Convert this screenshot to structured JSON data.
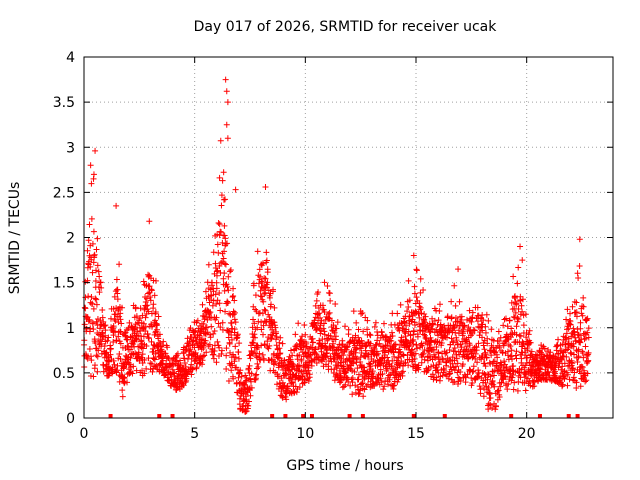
{
  "chart_data": {
    "type": "scatter",
    "title": "Day 017 of 2026, SRMTID for receiver ucak",
    "xlabel": "GPS time / hours",
    "ylabel": "SRMTID / TECUs",
    "xlim": [
      0,
      23.9
    ],
    "ylim": [
      0,
      4
    ],
    "grid": true,
    "marker": "+",
    "x_ticks": [
      0,
      5,
      10,
      15,
      20
    ],
    "x_tick_labels": [
      "0",
      "5",
      "10",
      "15",
      "20"
    ],
    "y_ticks": [
      0,
      0.5,
      1,
      1.5,
      2,
      2.5,
      3,
      3.5,
      4
    ],
    "y_tick_labels": [
      "0",
      "0.5",
      "1",
      "1.5",
      "2",
      "2.5",
      "3",
      "3.5",
      "4"
    ],
    "series": [
      {
        "name": "SRMTID",
        "color": "#ff0000",
        "envelope_hours": [
          0,
          0.2,
          0.4,
          0.6,
          0.8,
          1.0,
          1.2,
          1.5,
          1.8,
          2.0,
          2.3,
          2.6,
          2.9,
          3.2,
          3.5,
          3.8,
          4.1,
          4.4,
          4.7,
          5.0,
          5.3,
          5.6,
          5.9,
          6.2,
          6.5,
          6.8,
          7.1,
          7.4,
          7.7,
          8.0,
          8.3,
          8.6,
          8.9,
          9.2,
          9.5,
          9.8,
          10.1,
          10.4,
          10.7,
          11.0,
          11.3,
          11.6,
          11.9,
          12.2,
          12.5,
          12.8,
          13.1,
          13.4,
          13.7,
          14.0,
          14.3,
          14.6,
          14.9,
          15.2,
          15.5,
          15.8,
          16.1,
          16.4,
          16.7,
          17.0,
          17.3,
          17.6,
          17.9,
          18.2,
          18.5,
          18.8,
          19.1,
          19.4,
          19.7,
          20.0,
          20.3,
          20.6,
          20.9,
          21.2,
          21.5,
          21.8,
          22.1,
          22.4,
          22.8
        ],
        "envelope_low": [
          0.5,
          0.5,
          0.4,
          0.35,
          0.4,
          0.4,
          0.45,
          0.3,
          0.2,
          0.4,
          0.5,
          0.45,
          0.45,
          0.5,
          0.45,
          0.35,
          0.3,
          0.3,
          0.4,
          0.5,
          0.55,
          0.7,
          0.6,
          0.5,
          0.4,
          0.3,
          0.05,
          0.05,
          0.3,
          0.6,
          0.5,
          0.4,
          0.2,
          0.2,
          0.2,
          0.3,
          0.3,
          0.6,
          0.6,
          0.5,
          0.4,
          0.3,
          0.3,
          0.2,
          0.2,
          0.3,
          0.3,
          0.3,
          0.3,
          0.3,
          0.4,
          0.5,
          0.5,
          0.5,
          0.5,
          0.4,
          0.4,
          0.4,
          0.3,
          0.3,
          0.3,
          0.3,
          0.2,
          0.1,
          0.05,
          0.2,
          0.3,
          0.3,
          0.3,
          0.3,
          0.3,
          0.4,
          0.4,
          0.4,
          0.35,
          0.3,
          0.3,
          0.3,
          0.4
        ],
        "envelope_high": [
          1.3,
          2.2,
          2.8,
          2.3,
          1.6,
          1.1,
          1.2,
          1.9,
          1.2,
          1.2,
          1.3,
          1.3,
          2.1,
          1.4,
          0.9,
          0.8,
          0.8,
          0.7,
          1.0,
          1.2,
          1.2,
          1.7,
          2.0,
          3.3,
          2.2,
          1.7,
          0.5,
          0.6,
          1.6,
          2.2,
          1.9,
          1.3,
          0.9,
          0.7,
          1.0,
          1.1,
          1.0,
          1.3,
          1.6,
          1.5,
          1.3,
          1.1,
          1.0,
          1.2,
          1.2,
          1.1,
          1.0,
          1.2,
          1.1,
          1.2,
          1.3,
          1.5,
          1.7,
          1.6,
          1.2,
          1.4,
          1.3,
          1.2,
          1.5,
          1.4,
          1.2,
          1.5,
          1.6,
          1.2,
          1.0,
          1.1,
          1.3,
          1.6,
          1.7,
          1.2,
          0.8,
          0.9,
          0.8,
          0.8,
          0.9,
          1.2,
          1.6,
          1.7,
          1.1
        ],
        "notable_points": [
          {
            "x": 0.3,
            "y": 2.8
          },
          {
            "x": 0.5,
            "y": 2.96
          },
          {
            "x": 0.45,
            "y": 2.7
          },
          {
            "x": 1.45,
            "y": 2.35
          },
          {
            "x": 2.95,
            "y": 2.18
          },
          {
            "x": 3.25,
            "y": 1.52
          },
          {
            "x": 6.4,
            "y": 3.75
          },
          {
            "x": 6.45,
            "y": 3.62
          },
          {
            "x": 6.5,
            "y": 3.5
          },
          {
            "x": 6.45,
            "y": 3.25
          },
          {
            "x": 6.5,
            "y": 3.1
          },
          {
            "x": 6.85,
            "y": 2.53
          },
          {
            "x": 8.2,
            "y": 2.56
          },
          {
            "x": 19.7,
            "y": 1.9
          },
          {
            "x": 22.4,
            "y": 1.98
          },
          {
            "x": 14.9,
            "y": 1.8
          },
          {
            "x": 19.8,
            "y": 1.75
          },
          {
            "x": 16.9,
            "y": 1.65
          }
        ]
      }
    ],
    "baseline_markers_hours": [
      1.2,
      3.4,
      4.0,
      8.5,
      9.1,
      9.9,
      10.3,
      12.0,
      12.6,
      14.9,
      16.3,
      19.3,
      20.6,
      21.9,
      22.3
    ]
  }
}
